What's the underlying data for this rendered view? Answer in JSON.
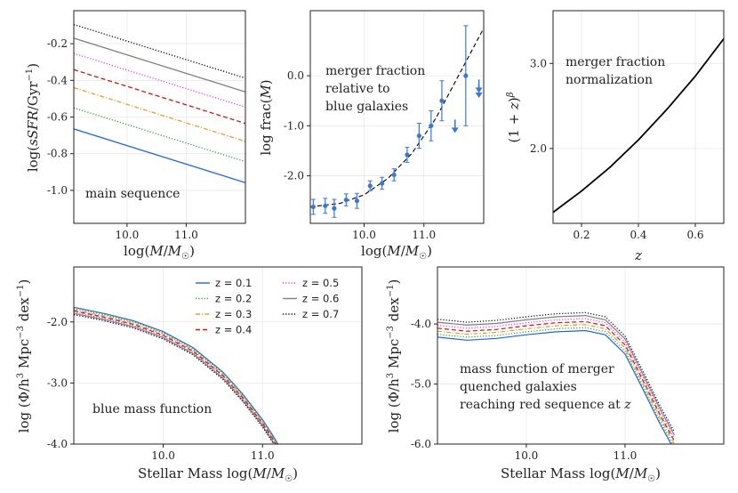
{
  "redshifts": [
    {
      "label": "z = 0.1",
      "color": "#1f66d9",
      "dash": "solid"
    },
    {
      "label": "z = 0.2",
      "color": "#2ca02c",
      "dash": "dot"
    },
    {
      "label": "z = 0.3",
      "color": "#e0a030",
      "dash": "dashdot"
    },
    {
      "label": "z = 0.4",
      "color": "#c01818",
      "dash": "dash"
    },
    {
      "label": "z = 0.5",
      "color": "#e040e0",
      "dash": "dot"
    },
    {
      "label": "z = 0.6",
      "color": "#808080",
      "dash": "solid"
    },
    {
      "label": "z = 0.7",
      "color": "#000000",
      "dash": "dot"
    }
  ],
  "chart_data": [
    {
      "id": "ssfr",
      "type": "line",
      "annotation": [
        "main sequence"
      ],
      "xlabel": "log(M/M☉)",
      "ylabel": "log(sSFR/Gyr⁻¹)",
      "xlim": [
        9.1,
        12.0
      ],
      "ylim": [
        -1.18,
        -0.02
      ],
      "xticks": [
        10.0,
        11.0
      ],
      "xtick_labels": [
        "10.0",
        "11.0"
      ],
      "yticks": [
        -1.0,
        -0.8,
        -0.6,
        -0.4,
        -0.2
      ],
      "ytick_labels": [
        "-1.0",
        "-0.8",
        "-0.6",
        "-0.4",
        "-0.2"
      ],
      "x": [
        9.1,
        12.0
      ],
      "series": [
        {
          "name": "z = 0.1",
          "values": [
            -0.665,
            -0.958
          ]
        },
        {
          "name": "z = 0.2",
          "values": [
            -0.55,
            -0.843
          ]
        },
        {
          "name": "z = 0.3",
          "values": [
            -0.44,
            -0.733
          ]
        },
        {
          "name": "z = 0.4",
          "values": [
            -0.342,
            -0.635
          ]
        },
        {
          "name": "z = 0.5",
          "values": [
            -0.253,
            -0.546
          ]
        },
        {
          "name": "z = 0.6",
          "values": [
            -0.17,
            -0.463
          ]
        },
        {
          "name": "z = 0.7",
          "values": [
            -0.095,
            -0.388
          ]
        }
      ]
    },
    {
      "id": "merger_frac",
      "type": "scatter",
      "annotation": [
        "merger fraction",
        "relative to",
        "blue galaxies"
      ],
      "xlabel": "log(M/M☉)",
      "ylabel": "log frac(M)",
      "xlim": [
        9.1,
        12.0
      ],
      "ylim": [
        -2.95,
        1.3
      ],
      "xticks": [
        10.0,
        11.0
      ],
      "xtick_labels": [
        "10.0",
        "11.0"
      ],
      "yticks": [
        -2.0,
        -1.0,
        0.0
      ],
      "ytick_labels": [
        "-2.0",
        "-1.0",
        "0.0"
      ],
      "points": [
        {
          "x": 9.15,
          "y": -2.62,
          "err": 0.15
        },
        {
          "x": 9.35,
          "y": -2.6,
          "err": 0.15
        },
        {
          "x": 9.5,
          "y": -2.65,
          "err": 0.18
        },
        {
          "x": 9.7,
          "y": -2.48,
          "err": 0.12
        },
        {
          "x": 9.88,
          "y": -2.5,
          "err": 0.15
        },
        {
          "x": 10.1,
          "y": -2.2,
          "err": 0.1
        },
        {
          "x": 10.3,
          "y": -2.15,
          "err": 0.12
        },
        {
          "x": 10.5,
          "y": -1.98,
          "err": 0.12
        },
        {
          "x": 10.72,
          "y": -1.58,
          "err": 0.15
        },
        {
          "x": 10.92,
          "y": -1.2,
          "err": 0.25
        },
        {
          "x": 11.12,
          "y": -1.0,
          "err": 0.3
        },
        {
          "x": 11.3,
          "y": -0.5,
          "err": 0.4
        },
        {
          "x": 11.7,
          "y": 0.0,
          "err": 1.0
        },
        {
          "x": 11.52,
          "y": -1.0,
          "err": 0.0,
          "upper_limit": true
        },
        {
          "x": 11.92,
          "y": -0.3,
          "err": 0.0,
          "upper_limit": true
        },
        {
          "x": 11.92,
          "y": -0.2,
          "err": 0.0,
          "upper_limit": true
        }
      ],
      "fit": {
        "x": [
          9.1,
          9.6,
          10.0,
          10.4,
          10.8,
          11.2,
          11.6,
          12.0
        ],
        "y": [
          -2.62,
          -2.55,
          -2.38,
          -2.05,
          -1.55,
          -0.85,
          0.05,
          0.95
        ]
      }
    },
    {
      "id": "norm",
      "type": "line",
      "annotation": [
        "merger fraction",
        "normalization"
      ],
      "xlabel": "z",
      "ylabel": "(1+z)^β",
      "xlim": [
        0.1,
        0.7
      ],
      "ylim": [
        1.12,
        3.62
      ],
      "xticks": [
        0.2,
        0.4,
        0.6
      ],
      "xtick_labels": [
        "0.2",
        "0.4",
        "0.6"
      ],
      "yticks": [
        2.0,
        3.0
      ],
      "ytick_labels": [
        "2.0",
        "3.0"
      ],
      "x": [
        0.1,
        0.2,
        0.3,
        0.4,
        0.5,
        0.6,
        0.7
      ],
      "series": [
        {
          "name": "normalization",
          "values": [
            1.25,
            1.5,
            1.78,
            2.1,
            2.46,
            2.85,
            3.29
          ]
        }
      ]
    },
    {
      "id": "blue_mf",
      "type": "line",
      "annotation": [
        "blue mass function"
      ],
      "xlabel": "Stellar Mass log(M/M☉)",
      "ylabel": "log (Φ/h³ Mpc⁻³ dex⁻¹)",
      "xlim": [
        9.1,
        12.0
      ],
      "ylim": [
        -4.0,
        -1.1
      ],
      "xticks": [
        10.0,
        11.0
      ],
      "xtick_labels": [
        "10.0",
        "11.0"
      ],
      "yticks": [
        -4.0,
        -3.0,
        -2.0
      ],
      "ytick_labels": [
        "-4.0",
        "-3.0",
        "-2.0"
      ],
      "x": [
        9.1,
        9.4,
        9.7,
        10.0,
        10.3,
        10.6,
        10.8,
        11.0,
        11.1,
        11.2
      ],
      "base": [
        -1.76,
        -1.86,
        -1.98,
        -2.16,
        -2.42,
        -2.82,
        -3.18,
        -3.6,
        -3.85,
        -4.12
      ],
      "offsets": [
        0.0,
        -0.02,
        -0.04,
        -0.06,
        -0.08,
        -0.1,
        -0.12
      ]
    },
    {
      "id": "merger_mf",
      "type": "line",
      "annotation": [
        "mass function of merger",
        "quenched galaxies",
        "reaching red sequence at z"
      ],
      "xlabel": "Stellar Mass log(M/M☉)",
      "ylabel": "log (Φ/h³ Mpc⁻³ dex⁻¹)",
      "xlim": [
        9.1,
        12.0
      ],
      "ylim": [
        -6.0,
        -3.05
      ],
      "xticks": [
        10.0,
        11.0
      ],
      "xtick_labels": [
        "10.0",
        "11.0"
      ],
      "yticks": [
        -6.0,
        -5.0,
        -4.0
      ],
      "ytick_labels": [
        "-6.0",
        "-5.0",
        "-4.0"
      ],
      "x": [
        9.1,
        9.4,
        9.7,
        10.0,
        10.3,
        10.6,
        10.8,
        11.0,
        11.2,
        11.35,
        11.5
      ],
      "base": [
        -4.22,
        -4.27,
        -4.24,
        -4.18,
        -4.13,
        -4.11,
        -4.18,
        -4.5,
        -5.15,
        -5.65,
        -6.1
      ],
      "offsets": [
        0.0,
        0.05,
        0.1,
        0.15,
        0.2,
        0.25,
        0.3
      ]
    }
  ]
}
